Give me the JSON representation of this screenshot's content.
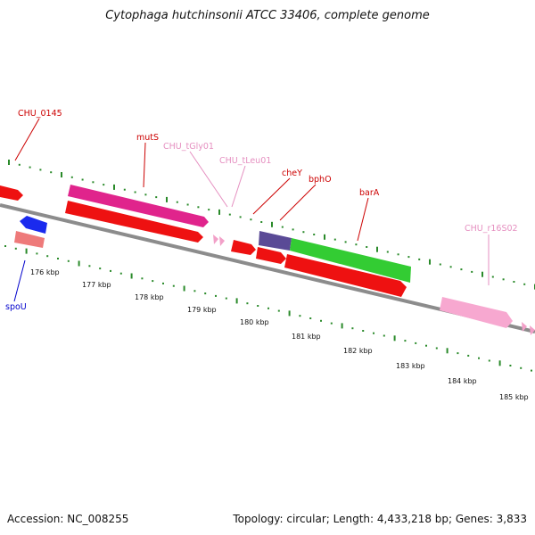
{
  "title": "Cytophaga hutchinsonii ATCC 33406, complete genome",
  "footer": {
    "accession": "Accession: NC_008255",
    "summary": "Topology: circular; Length: 4,433,218 bp; Genes: 3,833"
  },
  "colors": {
    "backbone": "#8c8c8c",
    "tick": "#2a8a2a",
    "cds_red": "#ee1111",
    "trna_pink": "#f2a0c8",
    "rrna_pink": "#f7a8d0",
    "magenta": "#e0248c",
    "green": "#33cc33",
    "purple": "#5a4a96",
    "blue": "#1a2aee",
    "salmon": "#ee7a7a",
    "label_red": "#cc0000",
    "label_pink": "#e58fc0",
    "label_blue": "#0000cc"
  },
  "axis": {
    "unit": "kbp",
    "ticks": [
      {
        "value": 176,
        "label": "176 kbp"
      },
      {
        "value": 177,
        "label": "177 kbp"
      },
      {
        "value": 178,
        "label": "178 kbp"
      },
      {
        "value": 179,
        "label": "179 kbp"
      },
      {
        "value": 180,
        "label": "180 kbp"
      },
      {
        "value": 181,
        "label": "181 kbp"
      },
      {
        "value": 182,
        "label": "182 kbp"
      },
      {
        "value": 183,
        "label": "183 kbp"
      },
      {
        "value": 184,
        "label": "184 kbp"
      },
      {
        "value": 185,
        "label": "185 kbp"
      }
    ]
  },
  "genes": [
    {
      "name": "CHU_0145",
      "label_color": "label_red"
    },
    {
      "name": "mutS",
      "label_color": "label_red"
    },
    {
      "name": "CHU_tGly01",
      "label_color": "label_pink"
    },
    {
      "name": "CHU_tLeu01",
      "label_color": "label_pink"
    },
    {
      "name": "cheY",
      "label_color": "label_red"
    },
    {
      "name": "bphO",
      "label_color": "label_red"
    },
    {
      "name": "barA",
      "label_color": "label_red"
    },
    {
      "name": "CHU_r16S02",
      "label_color": "label_pink"
    },
    {
      "name": "spoU",
      "label_color": "label_blue"
    }
  ]
}
